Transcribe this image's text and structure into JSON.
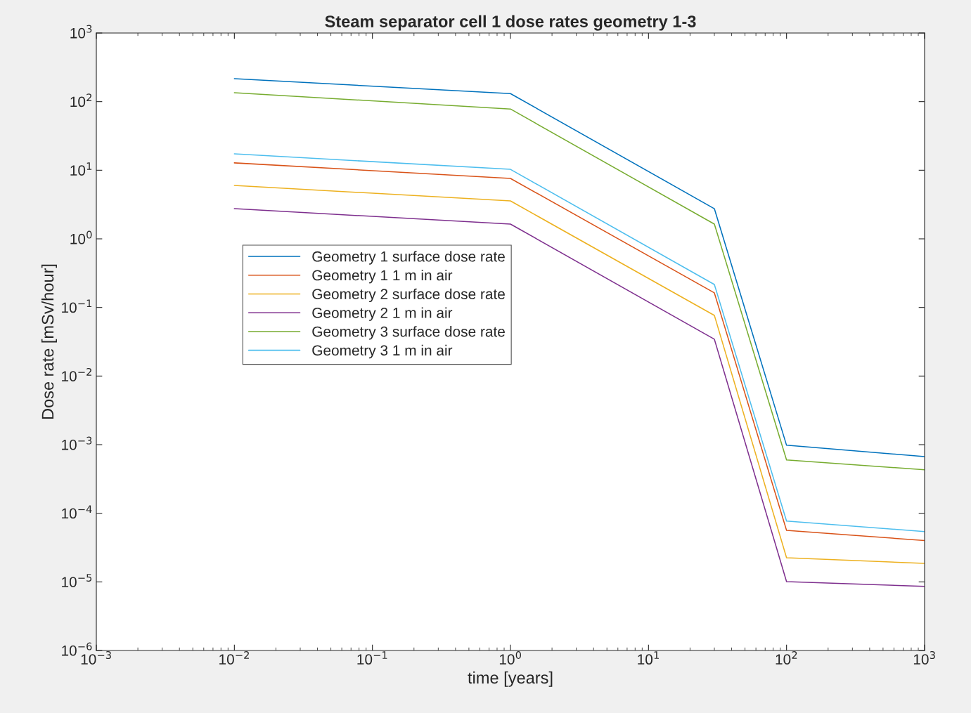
{
  "chart_data": {
    "type": "line",
    "title": "Steam separator cell 1 dose rates geometry 1-3",
    "xlabel": "time [years]",
    "ylabel": "Dose rate [mSv/hour]",
    "log": "xy",
    "grid": false,
    "legend": "center left",
    "marker": "none",
    "line_style": "solid",
    "x": [
      0.01,
      1,
      30,
      100,
      1000
    ],
    "xlim": [
      0.001,
      1000
    ],
    "ylim": [
      1e-06,
      1000
    ],
    "xticks": [
      {
        "value": 0.001,
        "label": "10$^{−3}$"
      },
      {
        "value": 0.01,
        "label": "10$^{−2}$"
      },
      {
        "value": 0.1,
        "label": "10$^{−1}$"
      },
      {
        "value": 1,
        "label": "10$^{0}$"
      },
      {
        "value": 10,
        "label": "10$^{1}$"
      },
      {
        "value": 100,
        "label": "10$^{2}$"
      },
      {
        "value": 1000,
        "label": "10$^{3}$"
      }
    ],
    "yticks": [
      {
        "value": 1e-06,
        "label": "10$^{−6}$"
      },
      {
        "value": 1e-05,
        "label": "10$^{−5}$"
      },
      {
        "value": 0.0001,
        "label": "10$^{−4}$"
      },
      {
        "value": 0.001,
        "label": "10$^{−3}$"
      },
      {
        "value": 0.01,
        "label": "10$^{−2}$"
      },
      {
        "value": 0.1,
        "label": "10$^{−1}$"
      },
      {
        "value": 1,
        "label": "10$^{0}$"
      },
      {
        "value": 10,
        "label": "10$^{1}$"
      },
      {
        "value": 100,
        "label": "10$^{2}$"
      },
      {
        "value": 1000,
        "label": "10$^{3}$"
      }
    ],
    "series": [
      {
        "name": "Geometry 1 surface dose rate",
        "color": "#0072bd",
        "values": [
          216,
          131,
          2.75,
          0.00098,
          0.00067
        ]
      },
      {
        "name": "Geometry 1 1 m in air",
        "color": "#d95319",
        "values": [
          12.8,
          7.6,
          0.163,
          5.64e-05,
          4e-05
        ]
      },
      {
        "name": "Geometry 2 surface dose rate",
        "color": "#edb120",
        "values": [
          6.0,
          3.57,
          0.0766,
          2.25e-05,
          1.86e-05
        ]
      },
      {
        "name": "Geometry 2 1 m in air",
        "color": "#7e2f8e",
        "values": [
          2.75,
          1.64,
          0.0344,
          1.01e-05,
          8.6e-06
        ]
      },
      {
        "name": "Geometry 3 surface dose rate",
        "color": "#77ac30",
        "values": [
          135,
          78,
          1.64,
          0.0006,
          0.00043
        ]
      },
      {
        "name": "Geometry 3 1 m in air",
        "color": "#4dbeee",
        "values": [
          17.3,
          10.3,
          0.216,
          7.7e-05,
          5.4e-05
        ]
      }
    ]
  }
}
